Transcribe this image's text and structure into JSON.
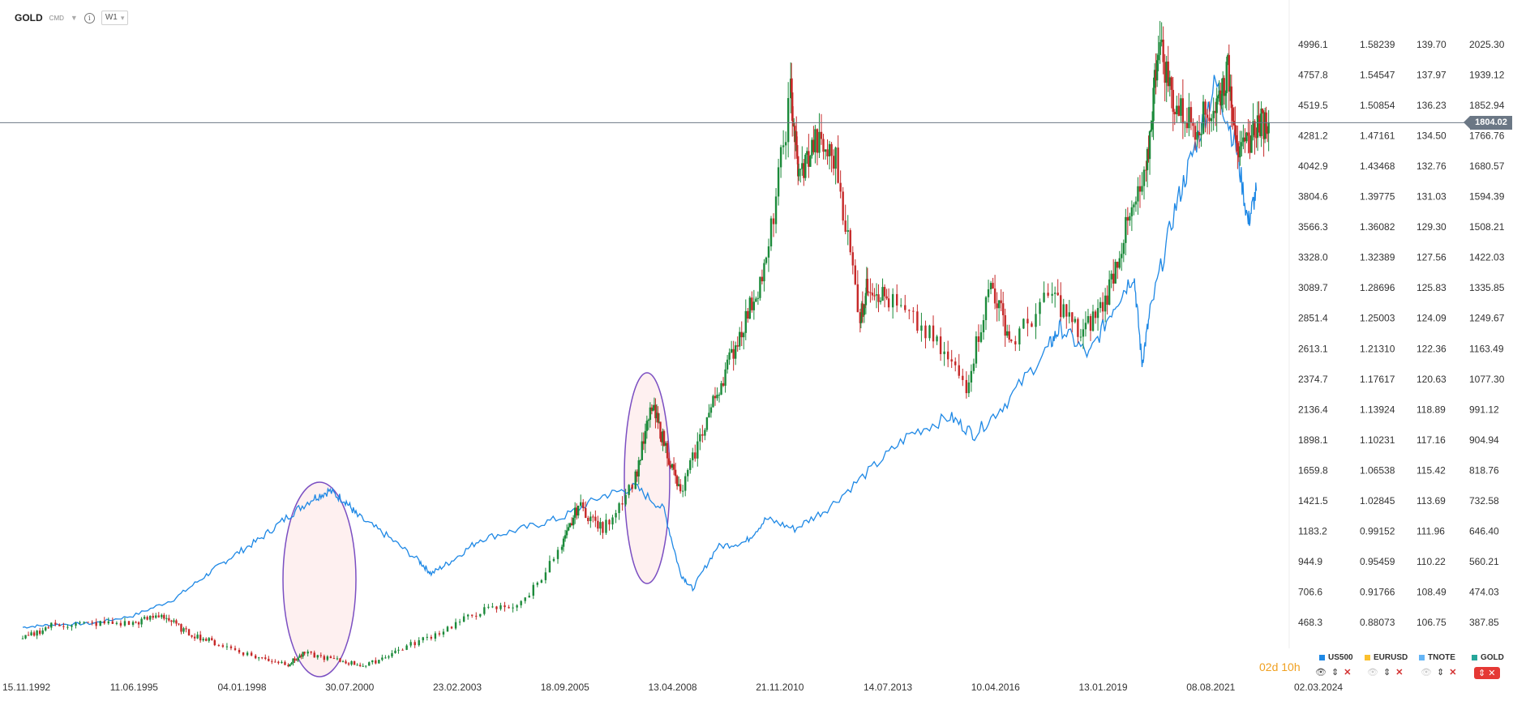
{
  "toolbar": {
    "symbol": "GOLD",
    "badge": "CMD",
    "timeframe": "W1"
  },
  "timer": {
    "days": "02",
    "days_unit": "d",
    "hours": "10",
    "hours_unit": "h"
  },
  "current_price": "1804.02",
  "legend": [
    {
      "label": "US500",
      "color": "#1e88e5",
      "visible": true
    },
    {
      "label": "EURUSD",
      "color": "#fbc02d",
      "visible": false
    },
    {
      "label": "TNOTE",
      "color": "#64b5f6",
      "visible": false
    },
    {
      "label": "GOLD",
      "color": "#26a69a",
      "visible": true
    }
  ],
  "chart_data": {
    "type": "line",
    "x_ticks": [
      "15.11.1992",
      "11.06.1995",
      "04.01.1998",
      "30.07.2000",
      "23.02.2003",
      "18.09.2005",
      "13.04.2008",
      "21.11.2010",
      "14.07.2013",
      "10.04.2016",
      "13.01.2019",
      "08.08.2021",
      "02.03.2024"
    ],
    "axes": [
      {
        "name": "US500",
        "ticks": [
          "4996.1",
          "4757.8",
          "4519.5",
          "4281.2",
          "4042.9",
          "3804.6",
          "3566.3",
          "3328.0",
          "3089.7",
          "2851.4",
          "2613.1",
          "2374.7",
          "2136.4",
          "1898.1",
          "1659.8",
          "1421.5",
          "1183.2",
          "944.9",
          "706.6",
          "468.3"
        ]
      },
      {
        "name": "EURUSD",
        "ticks": [
          "1.58239",
          "1.54547",
          "1.50854",
          "1.47161",
          "1.43468",
          "1.39775",
          "1.36082",
          "1.32389",
          "1.28696",
          "1.25003",
          "1.21310",
          "1.17617",
          "1.13924",
          "1.10231",
          "1.06538",
          "1.02845",
          "0.99152",
          "0.95459",
          "0.91766",
          "0.88073"
        ]
      },
      {
        "name": "TNOTE",
        "ticks": [
          "139.70",
          "137.97",
          "136.23",
          "134.50",
          "132.76",
          "131.03",
          "129.30",
          "127.56",
          "125.83",
          "124.09",
          "122.36",
          "120.63",
          "118.89",
          "117.16",
          "115.42",
          "113.69",
          "111.96",
          "110.22",
          "108.49",
          "106.75"
        ]
      },
      {
        "name": "GOLD",
        "ticks": [
          "2025.30",
          "1939.12",
          "1852.94",
          "1766.76",
          "1680.57",
          "1594.39",
          "1508.21",
          "1422.03",
          "1335.85",
          "1249.67",
          "1163.49",
          "1077.30",
          "991.12",
          "904.94",
          "818.76",
          "732.58",
          "646.40",
          "560.21",
          "474.03",
          "387.85"
        ]
      }
    ],
    "ylim_gold": [
      387.85,
      2025.3
    ],
    "ylim_us500": [
      468.3,
      4996.1
    ],
    "series": [
      {
        "name": "US500",
        "color": "#1e88e5",
        "x": [
          1992.8,
          1993.5,
          1994.5,
          1995.5,
          1996.5,
          1997.3,
          1997.9,
          1998.6,
          1999.3,
          1999.9,
          2000.3,
          2000.7,
          2001.0,
          2001.7,
          2002.5,
          2002.8,
          2003.3,
          2004.0,
          2005.0,
          2006.0,
          2007.0,
          2007.8,
          2008.5,
          2008.9,
          2009.2,
          2009.8,
          2010.5,
          2011.0,
          2011.7,
          2012.5,
          2013.5,
          2014.5,
          2015.5,
          2016.1,
          2016.9,
          2017.9,
          2018.2,
          2018.9,
          2019.5,
          2020.0,
          2020.2,
          2020.4,
          2021.0,
          2021.5,
          2022.0,
          2022.5,
          2022.8,
          2023.0
        ],
        "values": [
          430,
          450,
          460,
          520,
          650,
          840,
          980,
          1120,
          1300,
          1440,
          1500,
          1420,
          1300,
          1150,
          950,
          850,
          950,
          1120,
          1200,
          1290,
          1460,
          1530,
          1350,
          850,
          730,
          1060,
          1100,
          1280,
          1200,
          1360,
          1650,
          1940,
          2080,
          1940,
          2200,
          2620,
          2780,
          2560,
          2940,
          3200,
          2500,
          2900,
          3700,
          4200,
          4700,
          4200,
          3600,
          3850
        ]
      },
      {
        "name": "GOLD",
        "color": "#2e7d32",
        "x": [
          1992.8,
          1993.5,
          1994.5,
          1995.5,
          1996.2,
          1996.8,
          1997.5,
          1998.5,
          1999.3,
          1999.7,
          2000.5,
          2001.2,
          2002.0,
          2003.0,
          2004.0,
          2005.0,
          2006.0,
          2006.4,
          2007.0,
          2007.8,
          2008.2,
          2008.5,
          2008.9,
          2009.5,
          2010.0,
          2010.5,
          2011.0,
          2011.6,
          2011.8,
          2012.2,
          2012.7,
          2013.3,
          2013.5,
          2014.0,
          2015.0,
          2015.9,
          2016.5,
          2017.0,
          2018.0,
          2018.7,
          2019.3,
          2019.8,
          2020.3,
          2020.6,
          2021.0,
          2021.5,
          2022.0,
          2022.3,
          2022.6,
          2023.0,
          2023.3
        ],
        "values": [
          340,
          380,
          385,
          385,
          410,
          360,
          330,
          290,
          270,
          300,
          280,
          265,
          310,
          360,
          420,
          440,
          600,
          720,
          650,
          800,
          1000,
          900,
          750,
          950,
          1100,
          1250,
          1400,
          1890,
          1650,
          1750,
          1700,
          1250,
          1350,
          1300,
          1200,
          1060,
          1350,
          1180,
          1320,
          1200,
          1300,
          1500,
          1650,
          2040,
          1850,
          1800,
          1850,
          1950,
          1700,
          1800,
          1804
        ]
      }
    ],
    "annotations": [
      {
        "type": "ellipse",
        "note": "highlight",
        "center_x": 2000.5,
        "center_y_gold": 520
      },
      {
        "type": "ellipse",
        "note": "highlight",
        "center_x": 2007.8,
        "center_y_gold": 870
      }
    ],
    "current_line_gold": 1804.02
  }
}
